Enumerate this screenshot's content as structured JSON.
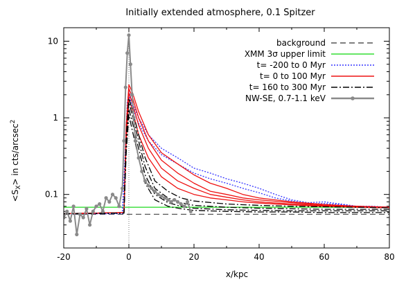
{
  "chart_data": {
    "type": "line",
    "title": "Initially extended atmosphere,  0.1 Spitzer",
    "xlabel": "x/kpc",
    "ylabel": "<S_X> in cts/arcsec^2",
    "ylabel_parts": {
      "pre": "<S",
      "sub": "X",
      "mid": "> in cts/arcsec",
      "sup": "2"
    },
    "xlim": [
      -20,
      80
    ],
    "ylim": [
      0.02,
      15
    ],
    "yscale": "log",
    "xticks": [
      -20,
      0,
      20,
      40,
      60,
      80
    ],
    "xtick_labels": [
      "-20",
      "0",
      "20",
      "40",
      "60",
      "80"
    ],
    "yticks_major": [
      0.1,
      1,
      10
    ],
    "ytick_labels": [
      "0.1",
      "1",
      "10"
    ],
    "legend_position": "top-right",
    "vertical_marker_x": 0,
    "series": [
      {
        "name": "background",
        "color": "#555555",
        "style": "dashed",
        "curves": [
          {
            "x": [
              -20,
              80
            ],
            "y": [
              0.055,
              0.055
            ]
          }
        ]
      },
      {
        "name": "XMM 3σ upper limit",
        "color": "#33dd33",
        "style": "solid",
        "curves": [
          {
            "x": [
              -20,
              80
            ],
            "y": [
              0.068,
              0.068
            ]
          }
        ]
      },
      {
        "name": "t= -200 to 0 Myr",
        "color": "#3333ff",
        "style": "dotted",
        "curves": [
          {
            "x": [
              -20,
              -2,
              -1.2,
              -0.5,
              0,
              1,
              3,
              6,
              10,
              15,
              20,
              25,
              30,
              35,
              40,
              45,
              50,
              55,
              60,
              65,
              70,
              75,
              80
            ],
            "y": [
              0.056,
              0.056,
              0.3,
              1.6,
              2.2,
              1.6,
              1.0,
              0.6,
              0.4,
              0.3,
              0.22,
              0.19,
              0.16,
              0.14,
              0.12,
              0.1,
              0.085,
              0.078,
              0.08,
              0.075,
              0.07,
              0.07,
              0.068
            ]
          },
          {
            "x": [
              -20,
              -2,
              -1.2,
              -0.5,
              0,
              1,
              3,
              6,
              10,
              15,
              20,
              25,
              30,
              35,
              40,
              45,
              50,
              55,
              60,
              65,
              70,
              75,
              80
            ],
            "y": [
              0.056,
              0.056,
              0.28,
              1.4,
              2.0,
              1.4,
              0.85,
              0.5,
              0.33,
              0.25,
              0.19,
              0.16,
              0.14,
              0.12,
              0.105,
              0.09,
              0.082,
              0.076,
              0.076,
              0.074,
              0.07,
              0.069,
              0.068
            ]
          }
        ]
      },
      {
        "name": "t= 0 to 100 Myr",
        "color": "#ee1111",
        "style": "solid",
        "curves": [
          {
            "x": [
              -20,
              -1.5,
              -0.8,
              0,
              1,
              3,
              6,
              10,
              15,
              20,
              25,
              30,
              35,
              40,
              50,
              60,
              70,
              80
            ],
            "y": [
              0.056,
              0.058,
              0.8,
              2.7,
              2.2,
              1.2,
              0.6,
              0.35,
              0.25,
              0.18,
              0.14,
              0.12,
              0.1,
              0.09,
              0.08,
              0.074,
              0.07,
              0.068
            ]
          },
          {
            "x": [
              -20,
              -1.5,
              -0.8,
              0,
              1,
              3,
              6,
              10,
              15,
              20,
              25,
              30,
              35,
              40,
              50,
              60,
              70,
              80
            ],
            "y": [
              0.056,
              0.058,
              0.7,
              2.4,
              1.9,
              1.0,
              0.5,
              0.28,
              0.19,
              0.14,
              0.11,
              0.1,
              0.09,
              0.085,
              0.078,
              0.072,
              0.07,
              0.068
            ]
          },
          {
            "x": [
              -20,
              -1.5,
              -0.8,
              0,
              1,
              3,
              6,
              10,
              15,
              20,
              25,
              30,
              35,
              40,
              50,
              60,
              70,
              80
            ],
            "y": [
              0.056,
              0.058,
              0.6,
              2.1,
              1.6,
              0.8,
              0.4,
              0.22,
              0.15,
              0.12,
              0.1,
              0.092,
              0.085,
              0.08,
              0.075,
              0.071,
              0.069,
              0.068
            ]
          },
          {
            "x": [
              -20,
              -1.5,
              -0.8,
              0,
              1,
              3,
              6,
              10,
              15,
              20,
              25,
              30,
              35,
              40,
              50,
              60,
              70,
              80
            ],
            "y": [
              0.056,
              0.058,
              0.5,
              1.8,
              1.3,
              0.6,
              0.3,
              0.17,
              0.12,
              0.1,
              0.09,
              0.085,
              0.08,
              0.077,
              0.073,
              0.07,
              0.068,
              0.067
            ]
          }
        ]
      },
      {
        "name": "t= 160 to 300 Myr",
        "color": "#000000",
        "style": "dashdot",
        "curves": [
          {
            "x": [
              -20,
              -1.5,
              -0.8,
              0,
              1,
              3,
              5,
              8,
              12,
              16,
              20,
              30,
              40,
              50,
              60,
              70,
              80
            ],
            "y": [
              0.056,
              0.057,
              0.6,
              1.8,
              1.3,
              0.6,
              0.3,
              0.15,
              0.11,
              0.09,
              0.082,
              0.075,
              0.072,
              0.07,
              0.069,
              0.068,
              0.067
            ]
          },
          {
            "x": [
              -20,
              -1.5,
              -0.8,
              0,
              1,
              3,
              5,
              8,
              12,
              16,
              20,
              30,
              40,
              50,
              60,
              70,
              80
            ],
            "y": [
              0.056,
              0.057,
              0.5,
              1.6,
              1.1,
              0.5,
              0.23,
              0.12,
              0.09,
              0.078,
              0.072,
              0.068,
              0.066,
              0.065,
              0.064,
              0.064,
              0.064
            ]
          },
          {
            "x": [
              -20,
              -1.5,
              -0.8,
              0,
              1,
              3,
              5,
              8,
              12,
              16,
              20,
              30,
              40,
              50,
              60,
              70,
              80
            ],
            "y": [
              0.056,
              0.057,
              0.4,
              1.3,
              0.9,
              0.4,
              0.18,
              0.1,
              0.078,
              0.07,
              0.066,
              0.063,
              0.062,
              0.061,
              0.061,
              0.061,
              0.061
            ]
          },
          {
            "x": [
              -20,
              -1.5,
              -0.8,
              0,
              1,
              3,
              5,
              8,
              12,
              16,
              20,
              30,
              40,
              50,
              60,
              70,
              80
            ],
            "y": [
              0.056,
              0.057,
              0.35,
              1.1,
              0.7,
              0.3,
              0.14,
              0.085,
              0.07,
              0.065,
              0.062,
              0.06,
              0.059,
              0.059,
              0.058,
              0.058,
              0.058
            ]
          }
        ]
      },
      {
        "name": "NW-SE, 0.7-1.1 keV",
        "color": "#8a8a8a",
        "style": "solid-points",
        "curves": [
          {
            "x": [
              -20,
              -19,
              -18,
              -17,
              -16,
              -15,
              -14,
              -13,
              -12,
              -11,
              -10,
              -9,
              -8,
              -7,
              -6,
              -5,
              -4,
              -3,
              -2,
              -1.5,
              -1,
              -0.5,
              0,
              0.5,
              1,
              1.5,
              2,
              3,
              4,
              5,
              6,
              7,
              8,
              9,
              10,
              11,
              12,
              13,
              14,
              15,
              16,
              17,
              18,
              19
            ],
            "y": [
              0.05,
              0.06,
              0.045,
              0.07,
              0.03,
              0.055,
              0.05,
              0.065,
              0.04,
              0.06,
              0.07,
              0.075,
              0.06,
              0.09,
              0.08,
              0.1,
              0.09,
              0.07,
              0.12,
              0.5,
              2.5,
              7,
              12,
              5,
              2,
              1.0,
              0.5,
              0.3,
              0.2,
              0.15,
              0.13,
              0.12,
              0.11,
              0.1,
              0.095,
              0.09,
              0.085,
              0.08,
              0.085,
              0.08,
              0.075,
              0.07,
              0.08,
              0.06
            ]
          }
        ]
      }
    ]
  }
}
